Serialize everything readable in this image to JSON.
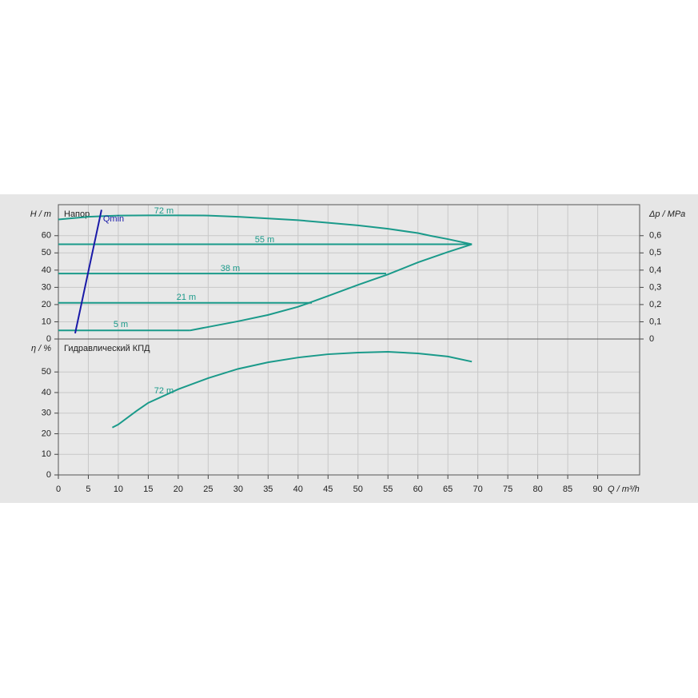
{
  "chart_data": [
    {
      "type": "line",
      "title": "Напор",
      "ylabel": "H / m",
      "y2label": "Δp / MPa",
      "xlim": [
        0,
        97
      ],
      "xticks": [
        0,
        5,
        10,
        15,
        20,
        25,
        30,
        35,
        40,
        45,
        50,
        55,
        60,
        65,
        70,
        75,
        80,
        85,
        90
      ],
      "ylim": [
        0,
        78
      ],
      "yticks": [
        0,
        10,
        20,
        30,
        40,
        50,
        60
      ],
      "y2lim": [
        0,
        0.78
      ],
      "y2ticks": [
        0,
        {
          "value": 0.1,
          "label": "0,1"
        },
        {
          "value": 0.2,
          "label": "0,2"
        },
        {
          "value": 0.3,
          "label": "0,3"
        },
        {
          "value": 0.4,
          "label": "0,4"
        },
        {
          "value": 0.5,
          "label": "0,5"
        },
        {
          "value": 0.6,
          "label": "0,6"
        }
      ],
      "grid": true,
      "series": [
        {
          "name": "72 m",
          "color": "#1a9a8a",
          "x": [
            0,
            5,
            10,
            15,
            20,
            25,
            30,
            35,
            40,
            45,
            50,
            55,
            60,
            62,
            65,
            69
          ],
          "values": [
            69.4,
            71,
            71.7,
            71.8,
            71.8,
            71.7,
            71,
            70,
            69,
            67.5,
            66,
            64,
            61.5,
            60,
            58,
            55
          ]
        },
        {
          "name": "55 m",
          "color": "#1a9a8a",
          "x": [
            0,
            69
          ],
          "values": [
            55,
            55
          ]
        },
        {
          "name": "38 m",
          "color": "#1a9a8a",
          "x": [
            0,
            54.7
          ],
          "values": [
            38,
            38
          ]
        },
        {
          "name": "21 m",
          "color": "#1a9a8a",
          "x": [
            0,
            42.3
          ],
          "values": [
            21,
            21
          ]
        },
        {
          "name": "5 m",
          "color": "#1a9a8a",
          "x": [
            0,
            22
          ],
          "values": [
            5,
            5
          ]
        },
        {
          "color": "#1a9a8a",
          "x": [
            22,
            25,
            30,
            35,
            40,
            45,
            50,
            55,
            60,
            65,
            69
          ],
          "values": [
            5,
            7,
            10.3,
            14,
            18.7,
            25,
            31.4,
            37.5,
            44.5,
            50.5,
            55
          ]
        },
        {
          "name": "Qmin",
          "color": "#1a1aa8",
          "x": [
            2.8,
            7.2
          ],
          "values": [
            3.3,
            75
          ]
        }
      ]
    },
    {
      "type": "line",
      "title": "Гидравлический КПД",
      "ylabel": "η / %",
      "xlabel": "Q / m³/h",
      "xlim": [
        0,
        97
      ],
      "xticks": [
        0,
        5,
        10,
        15,
        20,
        25,
        30,
        35,
        40,
        45,
        50,
        55,
        60,
        65,
        70,
        75,
        80,
        85,
        90
      ],
      "ylim": [
        0,
        66
      ],
      "yticks": [
        0,
        10,
        20,
        30,
        40,
        50
      ],
      "grid": true,
      "series": [
        {
          "name": "72 m",
          "color": "#1a9a8a",
          "x": [
            9,
            10,
            13,
            15,
            20,
            25,
            30,
            35,
            40,
            45,
            50,
            55,
            60,
            65,
            69
          ],
          "values": [
            23,
            24.5,
            31,
            35,
            41.6,
            47,
            51.5,
            54.7,
            57,
            58.6,
            59.4,
            59.8,
            59,
            57.5,
            55
          ]
        }
      ]
    }
  ]
}
